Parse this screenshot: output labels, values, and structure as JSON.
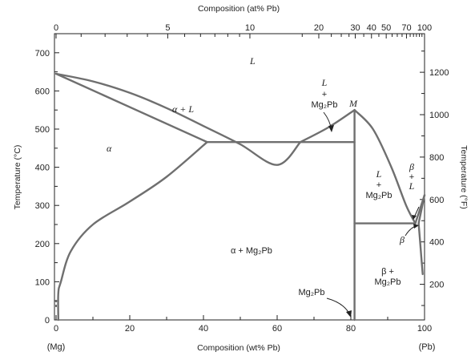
{
  "axes": {
    "bottom_title": "Composition (wt% Pb)",
    "top_title": "Composition (at% Pb)",
    "left_title": "Temperature (°C)",
    "right_title": "Temperature (°F)",
    "left_end_label": "(Mg)",
    "right_end_label": "(Pb)",
    "bottom_ticks": [
      "0",
      "20",
      "40",
      "60",
      "80",
      "100"
    ],
    "bottom_tick_values": [
      0,
      20,
      40,
      60,
      80,
      100
    ],
    "left_ticks": [
      "0",
      "100",
      "200",
      "300",
      "400",
      "500",
      "600",
      "700"
    ],
    "left_tick_values": [
      0,
      100,
      200,
      300,
      400,
      500,
      600,
      700
    ],
    "top_ticks": [
      "0",
      "5",
      "10",
      "20",
      "30",
      "40",
      "50",
      "70",
      "100"
    ],
    "top_tick_wt_positions": [
      0,
      30.3,
      52.6,
      71.3,
      81.2,
      85.6,
      89.6,
      95.1,
      100
    ],
    "top_minor_wt_positions": [
      6.8,
      13.3,
      19.3,
      24.8,
      34.9,
      39.2,
      43.1,
      46.6,
      49.8,
      66.8,
      74.7,
      77.4,
      79.5,
      83.5,
      87.6,
      91.2,
      92.6,
      93.9,
      96.1,
      97.0,
      97.8,
      98.6,
      99.3
    ],
    "right_ticks": [
      "200",
      "400",
      "600",
      "800",
      "1000",
      "1200"
    ],
    "right_tick_values_F": [
      200,
      400,
      600,
      800,
      1000,
      1200
    ],
    "x_range": [
      0,
      100
    ],
    "y_range": [
      0,
      750
    ]
  },
  "regions": {
    "liquid": "L",
    "alpha": "α",
    "alpha_liquid": "α + L",
    "alpha_mg2pb": "α  + Mg₂Pb",
    "liquid_mg2pb_left_top": "L",
    "liquid_mg2pb_left_plus": "+",
    "liquid_mg2pb_left_bottom": "Mg₂Pb",
    "point_m": "M",
    "liquid_mg2pb_right_top": "L",
    "liquid_mg2pb_right_plus": "+",
    "liquid_mg2pb_right_bottom": "Mg₂Pb",
    "beta_liquid_top": "β",
    "beta_liquid_plus": "+",
    "beta_liquid_bottom": "L",
    "beta": "β",
    "beta_mg2pb_top": "β +",
    "beta_mg2pb_bottom": "Mg₂Pb",
    "mg2pb": "Mg₂Pb"
  },
  "curves": {
    "alpha_liquidus": [
      [
        0,
        645
      ],
      [
        10,
        625
      ],
      [
        20,
        595
      ],
      [
        30,
        555
      ],
      [
        40,
        508
      ],
      [
        50,
        460
      ],
      [
        60,
        406
      ],
      [
        66.3,
        466
      ]
    ],
    "mg2pb_liquidus_left": [
      [
        66.3,
        466
      ],
      [
        74,
        505
      ],
      [
        81,
        550
      ]
    ],
    "mg2pb_liquidus_right": [
      [
        81,
        550
      ],
      [
        86,
        500
      ],
      [
        91,
        400
      ],
      [
        95,
        300
      ],
      [
        97.5,
        253
      ]
    ],
    "alpha_solidus": [
      [
        0,
        645
      ],
      [
        41,
        466
      ]
    ],
    "alpha_solvus": [
      [
        0.6,
        0
      ],
      [
        0.6,
        70
      ],
      [
        1.3,
        100
      ],
      [
        4,
        180
      ],
      [
        10,
        250
      ],
      [
        20,
        310
      ],
      [
        30,
        375
      ],
      [
        41,
        466
      ]
    ],
    "eutectic_1": [
      [
        41,
        466
      ],
      [
        81,
        466
      ]
    ],
    "mg2pb_line": [
      [
        81,
        0
      ],
      [
        81,
        550
      ]
    ],
    "eutectic_2": [
      [
        81,
        253
      ],
      [
        97.5,
        253
      ]
    ],
    "beta_liquidus": [
      [
        97.5,
        253
      ],
      [
        100,
        327
      ]
    ],
    "beta_solidus": [
      [
        98.4,
        253
      ],
      [
        100,
        327
      ]
    ],
    "beta_solvus": [
      [
        98.4,
        253
      ],
      [
        99,
        180
      ],
      [
        99.5,
        120
      ]
    ]
  }
}
